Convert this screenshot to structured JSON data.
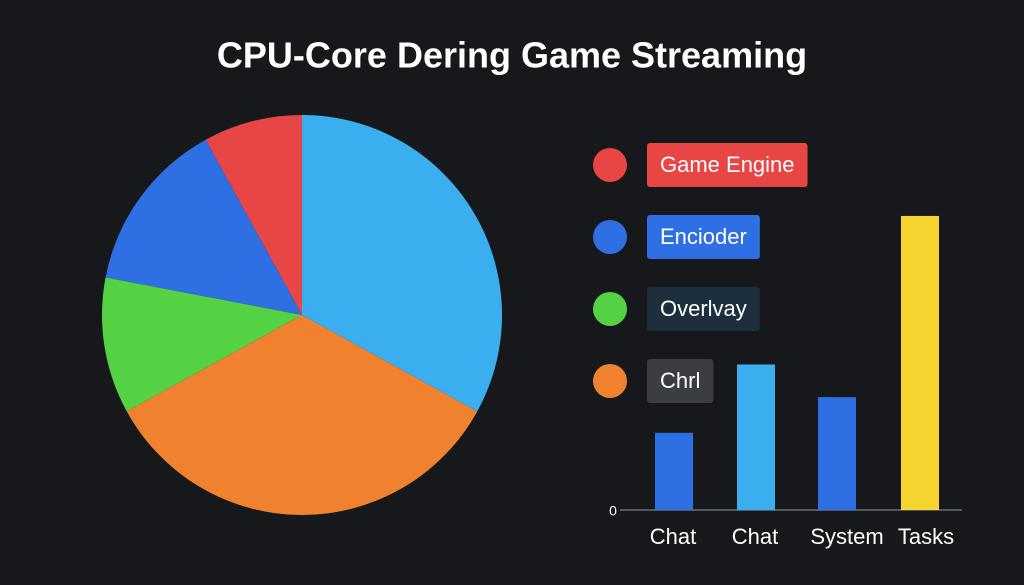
{
  "chart_data": [
    {
      "type": "pie",
      "title": "CPU-Core Dering Game Streaming",
      "direction": "counterclockwise",
      "categories": [
        "Game Engine",
        "Encioder",
        "Overlvay",
        "Chrl",
        null
      ],
      "values": [
        8,
        14,
        11,
        34,
        33
      ],
      "colors": [
        "#e84545",
        "#2f6fe4",
        "#55d144",
        "#f0822f",
        "#3aaeee"
      ],
      "legend_box_colors": [
        "#e84545",
        "#2f6fe4",
        "#1d2f3d",
        "#3a3d42"
      ]
    },
    {
      "type": "bar",
      "categories": [
        "Chat",
        "Chat",
        "System",
        "Tasks"
      ],
      "values": [
        26,
        49,
        38,
        99
      ],
      "colors": [
        "#2f6fe4",
        "#3aaeee",
        "#2f6fe4",
        "#f6d531"
      ],
      "ylim": [
        0,
        100
      ],
      "yticks": [
        0
      ]
    }
  ]
}
